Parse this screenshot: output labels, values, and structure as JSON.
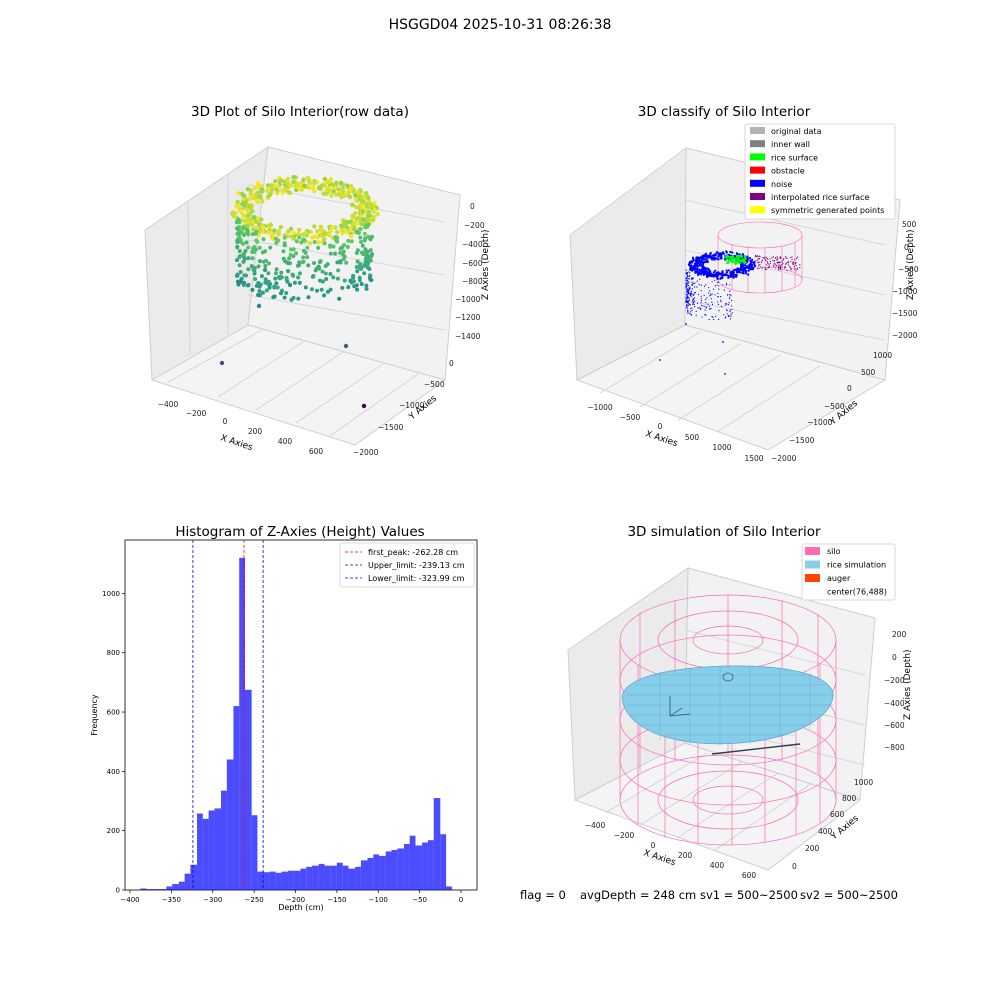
{
  "figure": {
    "title": "HSGGD04 2025-10-31 08:26:38",
    "footer": {
      "flag": "flag = 0",
      "avg": "avgDepth = 248 cm",
      "sv1": "sv1 = 500~2500",
      "sv2": "sv2 = 500~2500"
    }
  },
  "panels": {
    "raw": {
      "title": "3D Plot of Silo Interior(row data)",
      "xlabel": "X Axies",
      "ylabel": "Y Axies",
      "zlabel": "Z Axies (Depth)",
      "xticks": [
        "−400",
        "−200",
        "0",
        "200",
        "400",
        "600"
      ],
      "yticks": [
        "0",
        "−500",
        "−1000",
        "−1500",
        "−2000"
      ],
      "zticks": [
        "0",
        "−200",
        "−400",
        "−600",
        "−800",
        "−1000",
        "−1200",
        "−1400"
      ]
    },
    "classify": {
      "title": "3D classify of Silo Interior",
      "xlabel": "X Axies",
      "ylabel": "Y Axies",
      "zlabel": "Z Axies (Depth)",
      "xticks": [
        "−1000",
        "−500",
        "0",
        "500",
        "1000",
        "1500"
      ],
      "yticks": [
        "1000",
        "500",
        "0",
        "−500",
        "−1000",
        "−1500",
        "−2000"
      ],
      "zticks": [
        "500",
        "0",
        "−500",
        "−1000",
        "−1500",
        "−2000"
      ],
      "legend": [
        {
          "label": "original data",
          "color": "#b3b3b3"
        },
        {
          "label": "inner wall",
          "color": "#808080"
        },
        {
          "label": "rice surface",
          "color": "#00ff00"
        },
        {
          "label": "obstacle",
          "color": "#ff0000"
        },
        {
          "label": "noise",
          "color": "#0000ff"
        },
        {
          "label": "interpolated rice surface",
          "color": "#800080"
        },
        {
          "label": "symmetric generated points",
          "color": "#ffff00"
        }
      ]
    },
    "simulation": {
      "title": "3D simulation of Silo Interior",
      "xlabel": "X Axies",
      "ylabel": "Y Axies",
      "zlabel": "Z Axies (Depth)",
      "xticks": [
        "−400",
        "−200",
        "0",
        "200",
        "400",
        "600"
      ],
      "yticks": [
        "0",
        "200",
        "400",
        "600",
        "800",
        "1000"
      ],
      "zticks": [
        "200",
        "0",
        "−200",
        "−400",
        "−600",
        "−800"
      ],
      "legend": [
        {
          "label": "silo",
          "color": "#ff69b4"
        },
        {
          "label": "rice simulation",
          "color": "#87ceeb"
        },
        {
          "label": "auger",
          "color": "#ff4500"
        },
        {
          "label": "center(76,488)",
          "color": ""
        }
      ]
    }
  },
  "chart_data": [
    {
      "type": "bar",
      "title": "Histogram of Z-Axies (Height) Values",
      "xlabel": "Depth (cm)",
      "ylabel": "Frequency",
      "xlim": [
        -400,
        0
      ],
      "ylim": [
        0,
        1180
      ],
      "xticks": [
        -400,
        -350,
        -300,
        -250,
        -200,
        -150,
        -100,
        -50,
        0
      ],
      "yticks": [
        0,
        200,
        400,
        600,
        800,
        1000
      ],
      "bar_color": "#0000ff",
      "bins": [
        {
          "x0": -387.5,
          "x1": -380,
          "value": 5
        },
        {
          "x0": -380,
          "x1": -372,
          "value": 3
        },
        {
          "x0": -372,
          "x1": -356,
          "value": 3
        },
        {
          "x0": -356,
          "x1": -349,
          "value": 12
        },
        {
          "x0": -349,
          "x1": -341,
          "value": 20
        },
        {
          "x0": -341,
          "x1": -334,
          "value": 28
        },
        {
          "x0": -334,
          "x1": -327,
          "value": 55
        },
        {
          "x0": -327,
          "x1": -319,
          "value": 85
        },
        {
          "x0": -319,
          "x1": -312,
          "value": 258
        },
        {
          "x0": -312,
          "x1": -305,
          "value": 240
        },
        {
          "x0": -305,
          "x1": -298,
          "value": 268
        },
        {
          "x0": -298,
          "x1": -290,
          "value": 275
        },
        {
          "x0": -290,
          "x1": -283,
          "value": 335
        },
        {
          "x0": -283,
          "x1": -275,
          "value": 440
        },
        {
          "x0": -275,
          "x1": -268,
          "value": 620
        },
        {
          "x0": -268,
          "x1": -261,
          "value": 1120
        },
        {
          "x0": -261,
          "x1": -253,
          "value": 675
        },
        {
          "x0": -253,
          "x1": -246,
          "value": 252
        },
        {
          "x0": -246,
          "x1": -238,
          "value": 62
        },
        {
          "x0": -238,
          "x1": -231,
          "value": 60
        },
        {
          "x0": -231,
          "x1": -224,
          "value": 62
        },
        {
          "x0": -224,
          "x1": -217,
          "value": 58
        },
        {
          "x0": -217,
          "x1": -209,
          "value": 62
        },
        {
          "x0": -209,
          "x1": -202,
          "value": 65
        },
        {
          "x0": -202,
          "x1": -194,
          "value": 65
        },
        {
          "x0": -194,
          "x1": -187,
          "value": 72
        },
        {
          "x0": -187,
          "x1": -180,
          "value": 78
        },
        {
          "x0": -180,
          "x1": -172,
          "value": 82
        },
        {
          "x0": -172,
          "x1": -165,
          "value": 88
        },
        {
          "x0": -165,
          "x1": -158,
          "value": 82
        },
        {
          "x0": -158,
          "x1": -150,
          "value": 82
        },
        {
          "x0": -150,
          "x1": -143,
          "value": 92
        },
        {
          "x0": -143,
          "x1": -136,
          "value": 82
        },
        {
          "x0": -136,
          "x1": -128,
          "value": 72
        },
        {
          "x0": -128,
          "x1": -121,
          "value": 78
        },
        {
          "x0": -121,
          "x1": -113,
          "value": 100
        },
        {
          "x0": -113,
          "x1": -106,
          "value": 108
        },
        {
          "x0": -106,
          "x1": -99,
          "value": 120
        },
        {
          "x0": -99,
          "x1": -91,
          "value": 115
        },
        {
          "x0": -91,
          "x1": -84,
          "value": 130
        },
        {
          "x0": -84,
          "x1": -77,
          "value": 135
        },
        {
          "x0": -77,
          "x1": -69,
          "value": 140
        },
        {
          "x0": -69,
          "x1": -62,
          "value": 155
        },
        {
          "x0": -62,
          "x1": -55,
          "value": 183
        },
        {
          "x0": -55,
          "x1": -47,
          "value": 150
        },
        {
          "x0": -47,
          "x1": -40,
          "value": 160
        },
        {
          "x0": -40,
          "x1": -33,
          "value": 168
        },
        {
          "x0": -33,
          "x1": -25,
          "value": 310
        },
        {
          "x0": -25,
          "x1": -18,
          "value": 188
        },
        {
          "x0": -18,
          "x1": -11,
          "value": 12
        }
      ],
      "lines": [
        {
          "label": "first_peak: -262.28 cm",
          "x": -262.28,
          "color": "#ff0000"
        },
        {
          "label": "Upper_limit: -239.13 cm",
          "x": -239.13,
          "color": "#0000ff"
        },
        {
          "label": "Lower_limit: -323.99 cm",
          "x": -323.99,
          "color": "#0000ff"
        }
      ],
      "legend_position": "top-right"
    }
  ]
}
